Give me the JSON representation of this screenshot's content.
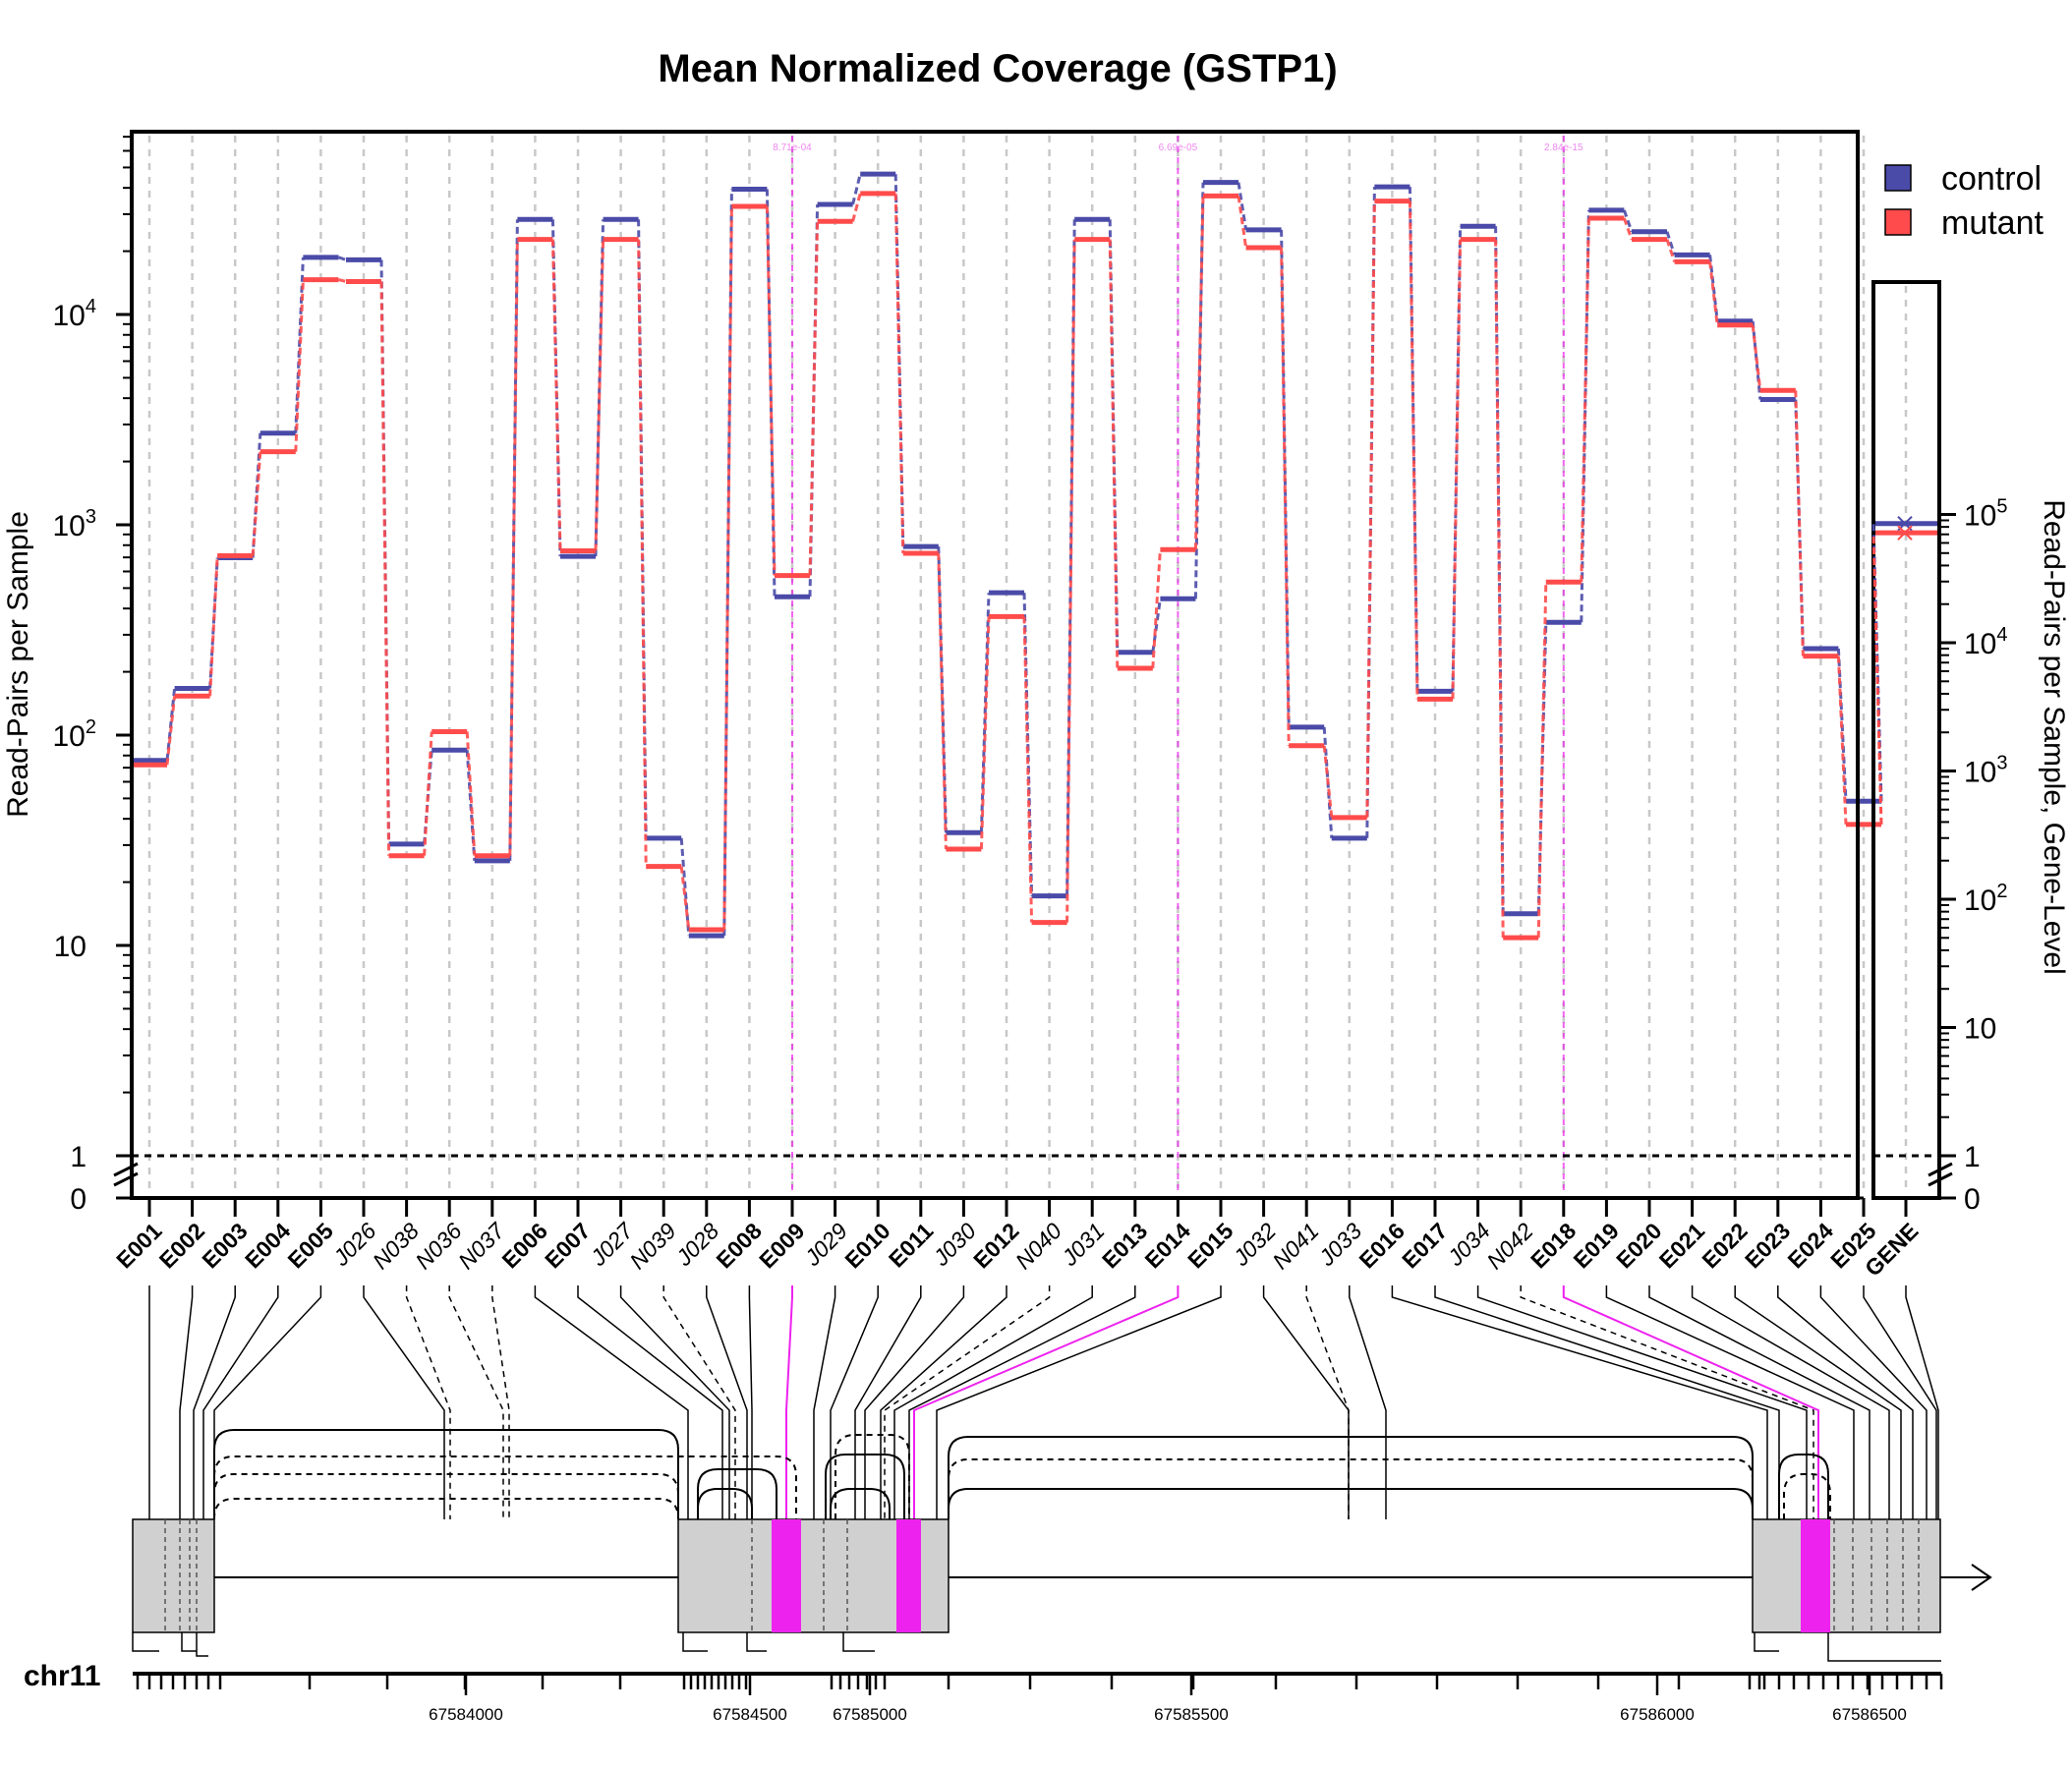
{
  "chart_data": {
    "type": "line",
    "title": "Mean Normalized Coverage (GSTP1)",
    "ylabel": "Read-Pairs per Sample",
    "ylabel_right": "Read-Pairs per Sample, Gene-Level",
    "yscale": "log",
    "ylim": [
      0,
      70000
    ],
    "ylim_gene": [
      0,
      100000
    ],
    "y_ticks": [
      {
        "value": 10000,
        "base": "10",
        "exp": "4"
      },
      {
        "value": 1000,
        "base": "10",
        "exp": "3"
      },
      {
        "value": 100,
        "base": "10",
        "exp": "2"
      },
      {
        "value": 10,
        "base": "10",
        "exp": ""
      },
      {
        "value": 1,
        "base": "1",
        "exp": ""
      },
      {
        "value": 0,
        "base": "0",
        "exp": ""
      }
    ],
    "y_ticks_gene": [
      {
        "value": 100000,
        "base": "10",
        "exp": "5"
      },
      {
        "value": 10000,
        "base": "10",
        "exp": "4"
      },
      {
        "value": 1000,
        "base": "10",
        "exp": "3"
      },
      {
        "value": 100,
        "base": "10",
        "exp": "2"
      },
      {
        "value": 10,
        "base": "10",
        "exp": ""
      },
      {
        "value": 1,
        "base": "1",
        "exp": ""
      },
      {
        "value": 0,
        "base": "0",
        "exp": ""
      }
    ],
    "grid": true,
    "legend_position": "top-right",
    "features": [
      {
        "id": "E001",
        "kind": "exon"
      },
      {
        "id": "E002",
        "kind": "exon"
      },
      {
        "id": "E003",
        "kind": "exon"
      },
      {
        "id": "E004",
        "kind": "exon"
      },
      {
        "id": "E005",
        "kind": "exon"
      },
      {
        "id": "J026",
        "kind": "junction"
      },
      {
        "id": "N038",
        "kind": "novel"
      },
      {
        "id": "N036",
        "kind": "novel"
      },
      {
        "id": "N037",
        "kind": "novel"
      },
      {
        "id": "E006",
        "kind": "exon"
      },
      {
        "id": "E007",
        "kind": "exon"
      },
      {
        "id": "J027",
        "kind": "junction"
      },
      {
        "id": "N039",
        "kind": "novel"
      },
      {
        "id": "J028",
        "kind": "junction"
      },
      {
        "id": "E008",
        "kind": "exon"
      },
      {
        "id": "E009",
        "kind": "exon",
        "significant": true,
        "pvalue": "8.71e-04"
      },
      {
        "id": "J029",
        "kind": "junction"
      },
      {
        "id": "E010",
        "kind": "exon"
      },
      {
        "id": "E011",
        "kind": "exon"
      },
      {
        "id": "J030",
        "kind": "junction"
      },
      {
        "id": "E012",
        "kind": "exon"
      },
      {
        "id": "N040",
        "kind": "novel"
      },
      {
        "id": "J031",
        "kind": "junction"
      },
      {
        "id": "E013",
        "kind": "exon"
      },
      {
        "id": "E014",
        "kind": "exon",
        "significant": true,
        "pvalue": "6.69e-05"
      },
      {
        "id": "E015",
        "kind": "exon"
      },
      {
        "id": "J032",
        "kind": "junction"
      },
      {
        "id": "N041",
        "kind": "novel"
      },
      {
        "id": "J033",
        "kind": "junction"
      },
      {
        "id": "E016",
        "kind": "exon"
      },
      {
        "id": "E017",
        "kind": "exon"
      },
      {
        "id": "J034",
        "kind": "junction"
      },
      {
        "id": "N042",
        "kind": "novel"
      },
      {
        "id": "E018",
        "kind": "exon",
        "significant": true,
        "pvalue": "2.84e-15"
      },
      {
        "id": "E019",
        "kind": "exon"
      },
      {
        "id": "E020",
        "kind": "exon"
      },
      {
        "id": "E021",
        "kind": "exon"
      },
      {
        "id": "E022",
        "kind": "exon"
      },
      {
        "id": "E023",
        "kind": "exon"
      },
      {
        "id": "E024",
        "kind": "exon"
      },
      {
        "id": "E025",
        "kind": "exon"
      }
    ],
    "series": [
      {
        "name": "control",
        "color": "#4a4aa8",
        "values": [
          75,
          165,
          690,
          2700,
          18500,
          18000,
          30,
          84,
          25,
          28000,
          700,
          28000,
          32,
          11,
          39000,
          450,
          33000,
          46000,
          780,
          34,
          470,
          17,
          28000,
          245,
          440,
          42000,
          25000,
          108,
          32,
          40000,
          160,
          26000,
          14,
          340,
          31000,
          24500,
          19000,
          9200,
          3900,
          255,
          48
        ]
      },
      {
        "name": "mutant",
        "color": "#ff4b4b",
        "values": [
          73,
          155,
          720,
          2250,
          14800,
          14500,
          27,
          105,
          27,
          23000,
          760,
          23000,
          24,
          12,
          33000,
          580,
          28000,
          38000,
          740,
          29,
          370,
          13,
          23000,
          210,
          770,
          37000,
          21000,
          90,
          41,
          35000,
          150,
          23000,
          11,
          540,
          29000,
          23000,
          18000,
          9000,
          4400,
          240,
          38
        ]
      }
    ],
    "gene_level": {
      "label": "GENE",
      "control": 85000,
      "mutant": 72000
    },
    "chromosome": "chr11",
    "coordinate_ticks": [
      "67584000",
      "67584500",
      "67585000",
      "67585500",
      "67586000",
      "67586500"
    ]
  },
  "colors": {
    "control": "#4a4aa8",
    "mutant": "#ff4b4b",
    "significant": "#ee22ee",
    "gene_box": "#d0d0d0"
  }
}
